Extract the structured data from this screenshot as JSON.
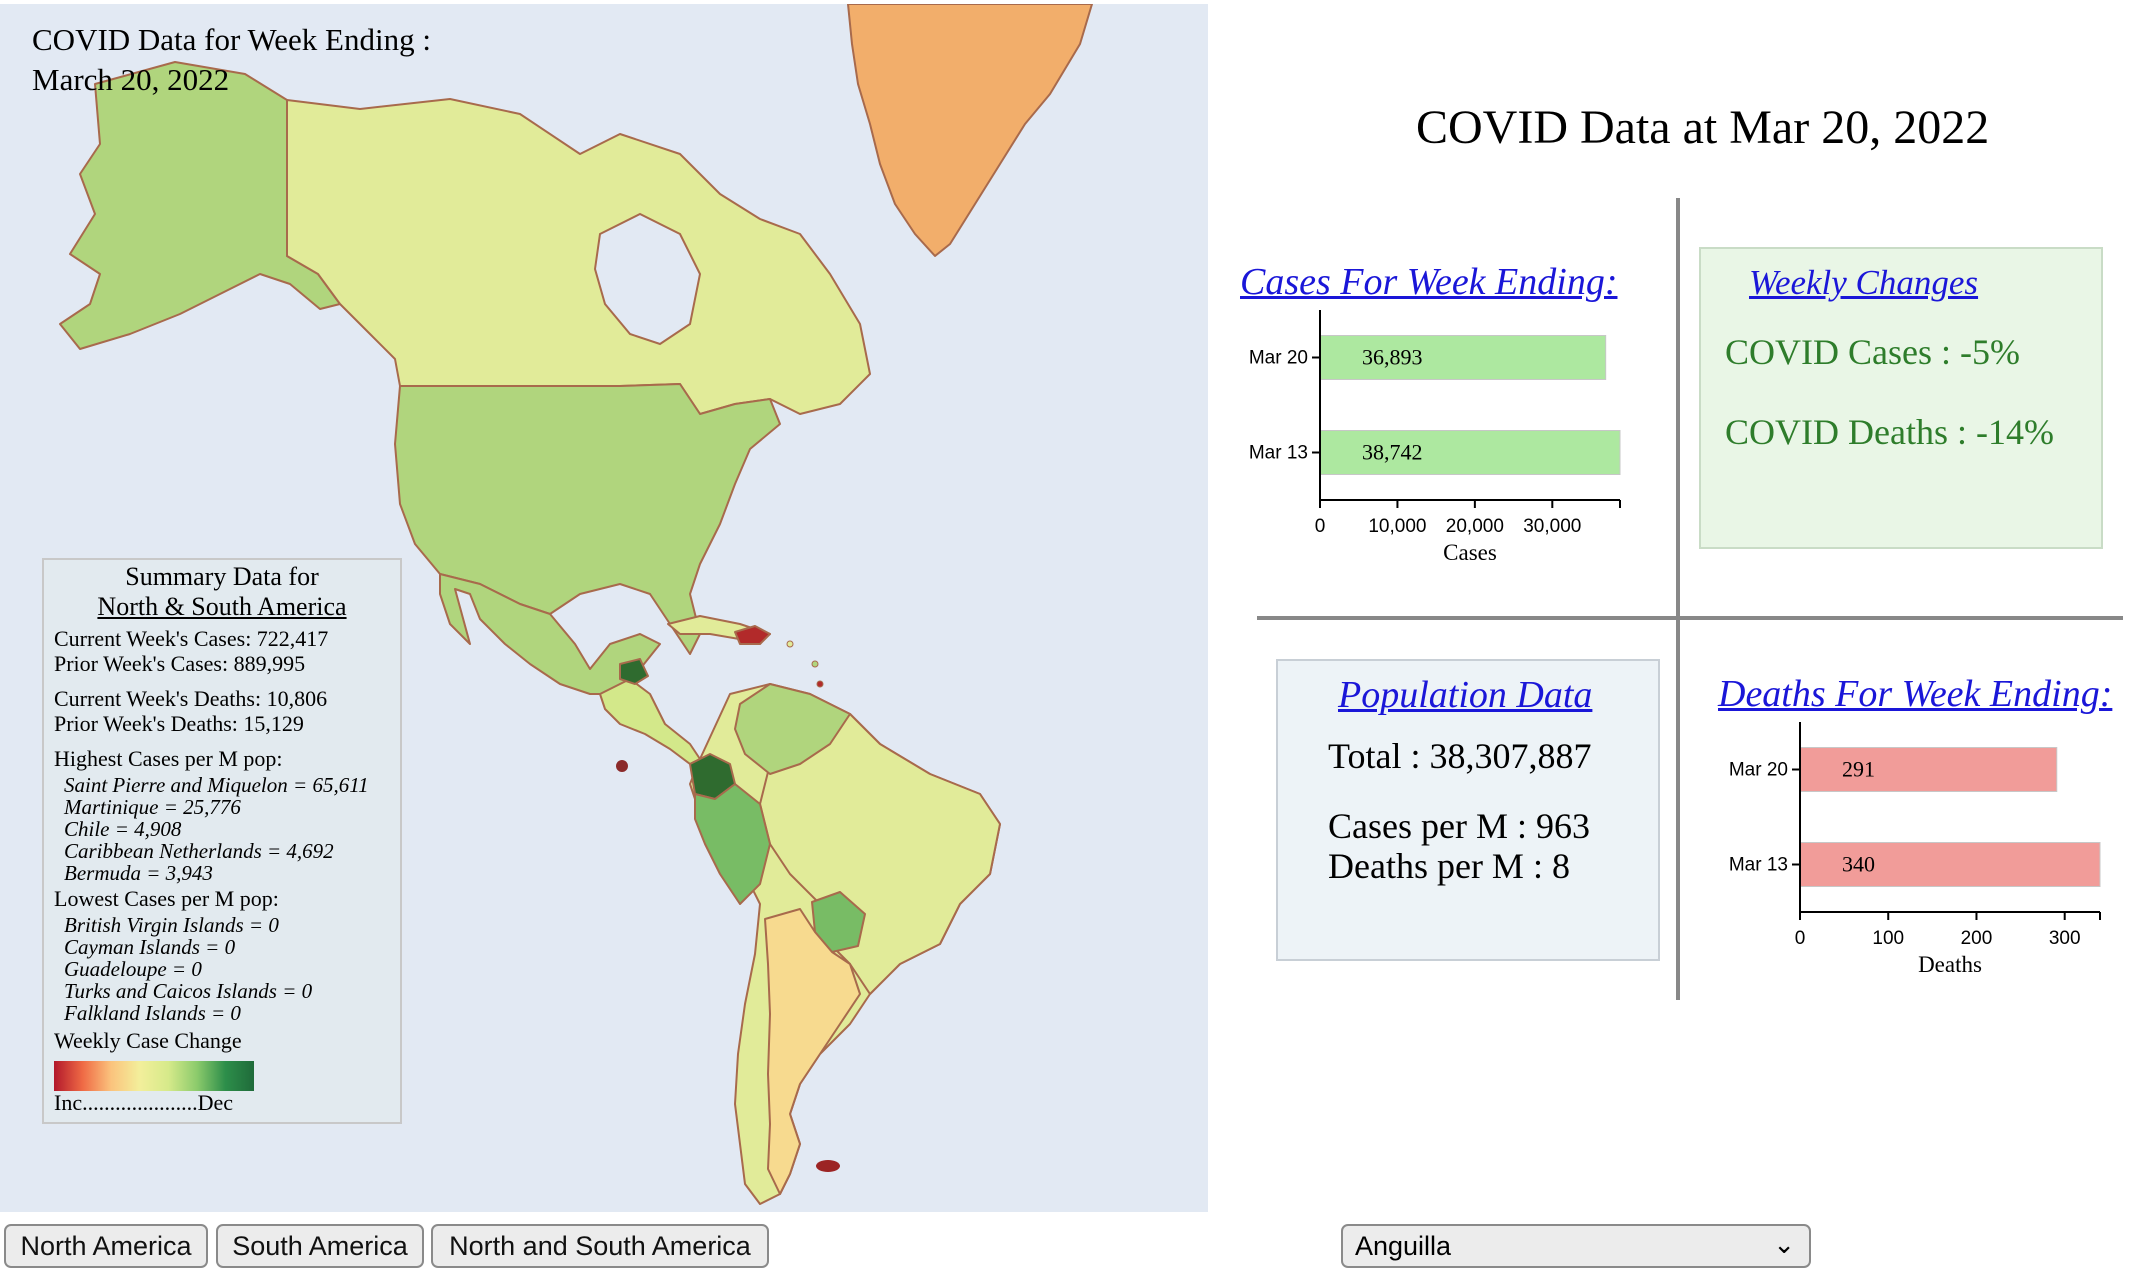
{
  "map": {
    "title_line1": "COVID Data for Week Ending :",
    "title_line2": "March 20, 2022"
  },
  "summary": {
    "heading": "Summary Data for",
    "region": "North & South America",
    "current_week_cases": "Current Week's Cases: 722,417",
    "prior_week_cases": "Prior Week's Cases: 889,995",
    "current_week_deaths": "Current Week's Deaths: 10,806",
    "prior_week_deaths": "Prior Week's Deaths: 15,129",
    "highest_heading": "Highest Cases per M pop:",
    "highest": [
      "Saint Pierre and Miquelon = 65,611",
      "Martinique = 25,776",
      "Chile = 4,908",
      "Caribbean Netherlands = 4,692",
      "Bermuda = 3,943"
    ],
    "lowest_heading": "Lowest Cases per M pop:",
    "lowest": [
      "British Virgin Islands = 0",
      "Cayman Islands = 0",
      "Guadeloupe = 0",
      "Turks and Caicos Islands = 0",
      "Falkland Islands = 0"
    ],
    "legend_title": "Weekly Case Change",
    "legend_scale": "Inc.....................Dec"
  },
  "buttons": {
    "north_america": "North America",
    "south_america": "South America",
    "north_and_south": "North and South America"
  },
  "country_select": {
    "selected": "Anguilla"
  },
  "dashboard": {
    "title": "COVID Data at Mar 20, 2022",
    "cases_link": "Cases For Week Ending:",
    "deaths_link": "Deaths For Week Ending:",
    "weekly_changes": {
      "link": "Weekly Changes",
      "cases": "COVID Cases : -5%",
      "deaths": "COVID Deaths : -14%"
    },
    "population": {
      "link": "Population Data",
      "total": "Total : 38,307,887",
      "cases_per_m": "Cases per M : 963",
      "deaths_per_m": "Deaths per M : 8"
    }
  },
  "colors": {
    "ocean": "#e2e9f3",
    "cases_bar": "#ade8a0",
    "deaths_bar": "#f19c99",
    "link": "#1a16d8",
    "weekly_green": "#2e7d2b"
  },
  "chart_data": [
    {
      "type": "bar",
      "orientation": "horizontal",
      "categories": [
        "Mar 20",
        "Mar 13"
      ],
      "values": [
        36893,
        38742
      ],
      "data_labels": [
        "36,893",
        "38,742"
      ],
      "xlabel": "Cases",
      "xlim": [
        0,
        38742
      ],
      "xticks": [
        0,
        10000,
        20000,
        30000
      ],
      "xtick_labels": [
        "0",
        "10,000",
        "20,000",
        "30,000"
      ],
      "color": "#ade8a0"
    },
    {
      "type": "bar",
      "orientation": "horizontal",
      "categories": [
        "Mar 20",
        "Mar 13"
      ],
      "values": [
        291,
        340
      ],
      "data_labels": [
        "291",
        "340"
      ],
      "xlabel": "Deaths",
      "xlim": [
        0,
        340
      ],
      "xticks": [
        0,
        100,
        200,
        300
      ],
      "xtick_labels": [
        "0",
        "100",
        "200",
        "300"
      ],
      "color": "#f19c99"
    }
  ]
}
